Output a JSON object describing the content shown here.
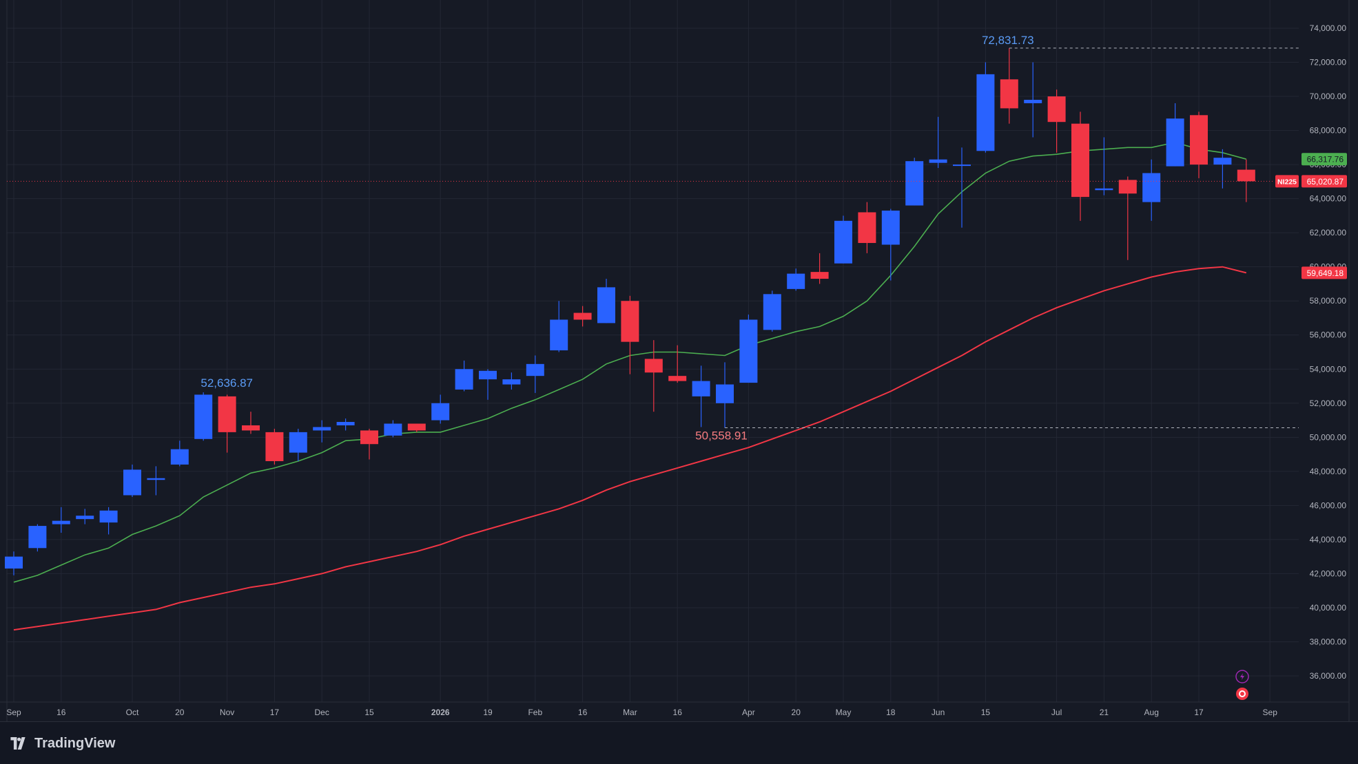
{
  "brand": "TradingView",
  "symbol": "NI225",
  "colors": {
    "background": "#161a25",
    "grid": "#232734",
    "up": "#2962ff",
    "down": "#f23645",
    "ma_short": "#4caf50",
    "ma_long": "#f23645",
    "axis_text": "#b2b5be",
    "high_label": "#5b9cf6",
    "low_label": "#f77c80"
  },
  "chart_data": {
    "type": "candlestick",
    "timeframe": "weekly",
    "y_axis": {
      "min": 34000,
      "max": 75000,
      "ticks": [
        36000,
        38000,
        40000,
        42000,
        44000,
        46000,
        48000,
        50000,
        52000,
        54000,
        56000,
        58000,
        60000,
        62000,
        64000,
        66000,
        68000,
        70000,
        72000,
        74000
      ],
      "tick_labels": [
        "36,000.00",
        "38,000.00",
        "40,000.00",
        "42,000.00",
        "44,000.00",
        "46,000.00",
        "48,000.00",
        "50,000.00",
        "52,000.00",
        "54,000.00",
        "56,000.00",
        "58,000.00",
        "60,000.00",
        "62,000.00",
        "64,000.00",
        "66,000.00",
        "68,000.00",
        "70,000.00",
        "72,000.00",
        "74,000.00"
      ]
    },
    "x_axis": {
      "ticks": [
        {
          "label": "Sep",
          "index": 0
        },
        {
          "label": "16",
          "index": 2
        },
        {
          "label": "Oct",
          "index": 5
        },
        {
          "label": "20",
          "index": 7
        },
        {
          "label": "Nov",
          "index": 9
        },
        {
          "label": "17",
          "index": 11
        },
        {
          "label": "Dec",
          "index": 13
        },
        {
          "label": "15",
          "index": 15
        },
        {
          "label": "2026",
          "index": 18
        },
        {
          "label": "19",
          "index": 20
        },
        {
          "label": "Feb",
          "index": 22
        },
        {
          "label": "16",
          "index": 24
        },
        {
          "label": "Mar",
          "index": 26
        },
        {
          "label": "16",
          "index": 28
        },
        {
          "label": "Apr",
          "index": 31
        },
        {
          "label": "20",
          "index": 33
        },
        {
          "label": "May",
          "index": 35
        },
        {
          "label": "18",
          "index": 37
        },
        {
          "label": "Jun",
          "index": 39
        },
        {
          "label": "15",
          "index": 41
        },
        {
          "label": "Jul",
          "index": 44
        },
        {
          "label": "21",
          "index": 46
        },
        {
          "label": "Aug",
          "index": 48
        },
        {
          "label": "17",
          "index": 50
        },
        {
          "label": "Sep",
          "index": 53
        }
      ]
    },
    "candles": [
      {
        "o": 42300,
        "h": 43300,
        "l": 41900,
        "c": 43000
      },
      {
        "o": 43500,
        "h": 44900,
        "l": 43300,
        "c": 44800
      },
      {
        "o": 44900,
        "h": 45900,
        "l": 44400,
        "c": 45100
      },
      {
        "o": 45200,
        "h": 45800,
        "l": 44900,
        "c": 45400
      },
      {
        "o": 45000,
        "h": 45900,
        "l": 44300,
        "c": 45700
      },
      {
        "o": 46600,
        "h": 48400,
        "l": 46500,
        "c": 48100
      },
      {
        "o": 47500,
        "h": 48300,
        "l": 46600,
        "c": 47600
      },
      {
        "o": 48400,
        "h": 49800,
        "l": 48300,
        "c": 49300
      },
      {
        "o": 49900,
        "h": 52636.87,
        "l": 49800,
        "c": 52500
      },
      {
        "o": 52400,
        "h": 52500,
        "l": 49100,
        "c": 50300
      },
      {
        "o": 50700,
        "h": 51500,
        "l": 50200,
        "c": 50400
      },
      {
        "o": 50300,
        "h": 50500,
        "l": 48400,
        "c": 48600
      },
      {
        "o": 49100,
        "h": 50500,
        "l": 48600,
        "c": 50300
      },
      {
        "o": 50400,
        "h": 51000,
        "l": 49700,
        "c": 50600
      },
      {
        "o": 50700,
        "h": 51100,
        "l": 50400,
        "c": 50900
      },
      {
        "o": 50400,
        "h": 50500,
        "l": 48700,
        "c": 49600
      },
      {
        "o": 50100,
        "h": 51000,
        "l": 50000,
        "c": 50800
      },
      {
        "o": 50800,
        "h": 50800,
        "l": 50300,
        "c": 50400
      },
      {
        "o": 51000,
        "h": 52500,
        "l": 50800,
        "c": 52000
      },
      {
        "o": 52800,
        "h": 54500,
        "l": 52700,
        "c": 54000
      },
      {
        "o": 53400,
        "h": 54000,
        "l": 52200,
        "c": 53900
      },
      {
        "o": 53100,
        "h": 53800,
        "l": 52800,
        "c": 53400
      },
      {
        "o": 53600,
        "h": 54800,
        "l": 52600,
        "c": 54300
      },
      {
        "o": 55100,
        "h": 58000,
        "l": 55000,
        "c": 56900
      },
      {
        "o": 57300,
        "h": 57700,
        "l": 56500,
        "c": 56900
      },
      {
        "o": 56700,
        "h": 59300,
        "l": 56700,
        "c": 58800
      },
      {
        "o": 58000,
        "h": 58300,
        "l": 53700,
        "c": 55600
      },
      {
        "o": 54600,
        "h": 55700,
        "l": 51500,
        "c": 53800
      },
      {
        "o": 53600,
        "h": 55400,
        "l": 53200,
        "c": 53300
      },
      {
        "o": 52400,
        "h": 54200,
        "l": 50600,
        "c": 53300
      },
      {
        "o": 52000,
        "h": 54400,
        "l": 50558.91,
        "c": 53100
      },
      {
        "o": 53200,
        "h": 57200,
        "l": 53200,
        "c": 56900
      },
      {
        "o": 56300,
        "h": 58600,
        "l": 56200,
        "c": 58400
      },
      {
        "o": 58700,
        "h": 59900,
        "l": 58600,
        "c": 59600
      },
      {
        "o": 59700,
        "h": 60800,
        "l": 59000,
        "c": 59300
      },
      {
        "o": 60200,
        "h": 63000,
        "l": 60200,
        "c": 62700
      },
      {
        "o": 63200,
        "h": 63800,
        "l": 60800,
        "c": 61400
      },
      {
        "o": 61300,
        "h": 63400,
        "l": 59200,
        "c": 63300
      },
      {
        "o": 63600,
        "h": 66400,
        "l": 63600,
        "c": 66200
      },
      {
        "o": 66100,
        "h": 68800,
        "l": 65800,
        "c": 66300
      },
      {
        "o": 66000,
        "h": 67000,
        "l": 62300,
        "c": 66000
      },
      {
        "o": 66800,
        "h": 72000,
        "l": 66700,
        "c": 71300
      },
      {
        "o": 71000,
        "h": 72831.73,
        "l": 68400,
        "c": 69300
      },
      {
        "o": 69600,
        "h": 72000,
        "l": 67600,
        "c": 69800
      },
      {
        "o": 70000,
        "h": 70400,
        "l": 66700,
        "c": 68500
      },
      {
        "o": 68400,
        "h": 69100,
        "l": 62700,
        "c": 64100
      },
      {
        "o": 64500,
        "h": 67600,
        "l": 64200,
        "c": 64600
      },
      {
        "o": 65100,
        "h": 65300,
        "l": 60400,
        "c": 64300
      },
      {
        "o": 63800,
        "h": 66300,
        "l": 62700,
        "c": 65500
      },
      {
        "o": 65900,
        "h": 69600,
        "l": 65900,
        "c": 68700
      },
      {
        "o": 68900,
        "h": 69100,
        "l": 65200,
        "c": 66000
      },
      {
        "o": 66000,
        "h": 66900,
        "l": 64600,
        "c": 66400
      },
      {
        "o": 65700,
        "h": 66300,
        "l": 63800,
        "c": 65020.87
      }
    ],
    "series": [
      {
        "name": "",
        "color": "#4caf50",
        "values": [
          41500,
          41900,
          42500,
          43100,
          43500,
          44300,
          44800,
          45400,
          46500,
          47200,
          47900,
          48200,
          48600,
          49100,
          49800,
          49900,
          50200,
          50300,
          50300,
          50700,
          51100,
          51700,
          52200,
          52800,
          53400,
          54300,
          54800,
          55000,
          55000,
          54900,
          54800,
          55400,
          55800,
          56200,
          56500,
          57100,
          58000,
          59500,
          61200,
          63100,
          64400,
          65500,
          66200,
          66500,
          66600,
          66800,
          66900,
          67000,
          67000,
          67300,
          66900,
          66700,
          66317.76
        ]
      },
      {
        "name": "",
        "color": "#f23645",
        "values": [
          38700,
          38900,
          39100,
          39300,
          39500,
          39700,
          39900,
          40300,
          40600,
          40900,
          41200,
          41400,
          41700,
          42000,
          42400,
          42700,
          43000,
          43300,
          43700,
          44200,
          44600,
          45000,
          45400,
          45800,
          46300,
          46900,
          47400,
          47800,
          48200,
          48600,
          49000,
          49400,
          49900,
          50400,
          50900,
          51500,
          52100,
          52700,
          53400,
          54100,
          54800,
          55600,
          56300,
          57000,
          57600,
          58100,
          58600,
          59000,
          59400,
          59700,
          59900,
          60000,
          59649.18
        ]
      }
    ],
    "annotations": {
      "high_label": "72,831.73",
      "low_label": "50,558.91",
      "mid_high_label": "52,636.87"
    },
    "price_labels": [
      {
        "value": 66317.76,
        "text": "66,317.76",
        "bg": "#4caf50",
        "fg": "#161a25"
      },
      {
        "value": 65020.87,
        "text": "65,020.87",
        "bg": "#f23645",
        "fg": "#ffffff"
      },
      {
        "value": 59649.18,
        "text": "59,649.18",
        "bg": "#f23645",
        "fg": "#ffffff"
      }
    ],
    "current_value": 65020.87
  }
}
